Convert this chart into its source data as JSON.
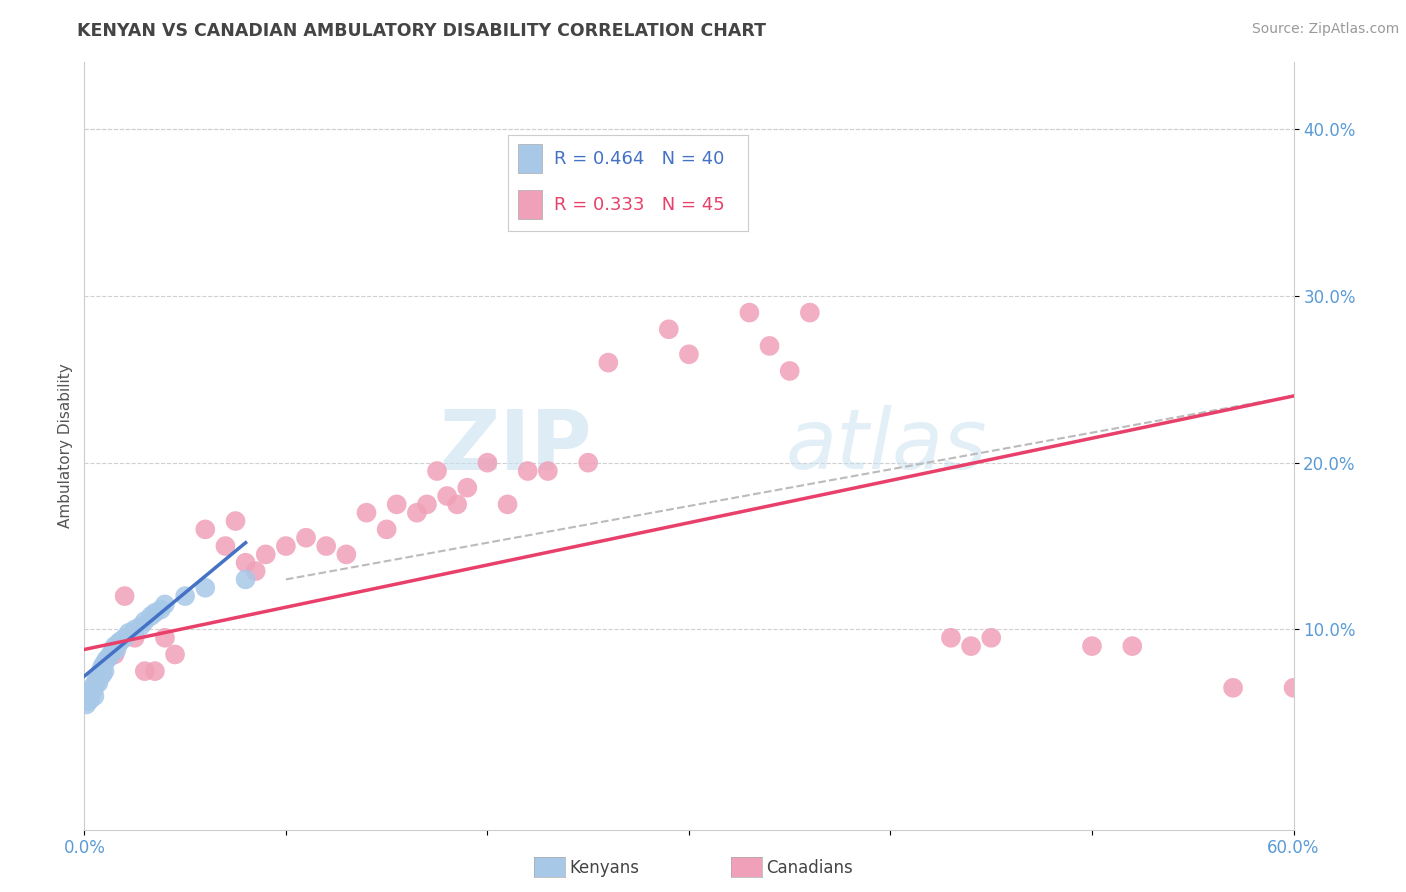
{
  "title": "KENYAN VS CANADIAN AMBULATORY DISABILITY CORRELATION CHART",
  "source": "Source: ZipAtlas.com",
  "ylabel": "Ambulatory Disability",
  "xlim": [
    0.0,
    0.6
  ],
  "ylim": [
    -0.02,
    0.44
  ],
  "xticks": [
    0.0,
    0.1,
    0.2,
    0.3,
    0.4,
    0.5,
    0.6
  ],
  "xticklabels": [
    "0.0%",
    "",
    "",
    "",
    "",
    "",
    "60.0%"
  ],
  "yticks": [
    0.1,
    0.2,
    0.3,
    0.4
  ],
  "yticklabels": [
    "10.0%",
    "20.0%",
    "30.0%",
    "40.0%"
  ],
  "kenyan_color": "#A8C8E8",
  "canadian_color": "#F0A0B8",
  "kenyan_line_color": "#4472C4",
  "canadian_line_color": "#E8406A",
  "dashed_line_color": "#BBBBBB",
  "background_color": "#FFFFFF",
  "grid_color": "#D0D0D0",
  "watermark_zip": "ZIP",
  "watermark_atlas": "atlas",
  "title_color": "#444444",
  "axis_label_color": "#5B9BD5",
  "legend_r1_text": "R = 0.464   N = 40",
  "legend_r2_text": "R = 0.333   N = 45",
  "legend_r1_color": "#4472C4",
  "legend_r2_color": "#E8406A",
  "kenyan_x": [
    0.001,
    0.002,
    0.002,
    0.003,
    0.003,
    0.004,
    0.004,
    0.005,
    0.005,
    0.005,
    0.006,
    0.006,
    0.007,
    0.007,
    0.008,
    0.008,
    0.009,
    0.009,
    0.01,
    0.01,
    0.011,
    0.012,
    0.013,
    0.014,
    0.015,
    0.016,
    0.017,
    0.018,
    0.02,
    0.022,
    0.025,
    0.028,
    0.03,
    0.033,
    0.035,
    0.038,
    0.04,
    0.05,
    0.06,
    0.08
  ],
  "kenyan_y": [
    0.055,
    0.057,
    0.06,
    0.058,
    0.062,
    0.063,
    0.065,
    0.06,
    0.065,
    0.067,
    0.068,
    0.07,
    0.072,
    0.068,
    0.072,
    0.075,
    0.073,
    0.078,
    0.075,
    0.08,
    0.082,
    0.083,
    0.085,
    0.087,
    0.09,
    0.088,
    0.092,
    0.093,
    0.095,
    0.098,
    0.1,
    0.102,
    0.105,
    0.108,
    0.11,
    0.112,
    0.115,
    0.12,
    0.125,
    0.13
  ],
  "canadian_x": [
    0.015,
    0.02,
    0.025,
    0.03,
    0.035,
    0.04,
    0.045,
    0.06,
    0.07,
    0.075,
    0.08,
    0.085,
    0.09,
    0.1,
    0.11,
    0.12,
    0.13,
    0.14,
    0.15,
    0.155,
    0.165,
    0.17,
    0.175,
    0.18,
    0.185,
    0.19,
    0.2,
    0.21,
    0.22,
    0.23,
    0.25,
    0.26,
    0.29,
    0.3,
    0.33,
    0.34,
    0.35,
    0.36,
    0.43,
    0.44,
    0.45,
    0.5,
    0.52,
    0.57,
    0.6
  ],
  "canadian_y": [
    0.085,
    0.12,
    0.095,
    0.075,
    0.075,
    0.095,
    0.085,
    0.16,
    0.15,
    0.165,
    0.14,
    0.135,
    0.145,
    0.15,
    0.155,
    0.15,
    0.145,
    0.17,
    0.16,
    0.175,
    0.17,
    0.175,
    0.195,
    0.18,
    0.175,
    0.185,
    0.2,
    0.175,
    0.195,
    0.195,
    0.2,
    0.26,
    0.28,
    0.265,
    0.29,
    0.27,
    0.255,
    0.29,
    0.095,
    0.09,
    0.095,
    0.09,
    0.09,
    0.065,
    0.065
  ],
  "kenyan_trend_x0": 0.0,
  "kenyan_trend_x1": 0.08,
  "kenyan_trend_y0": 0.072,
  "kenyan_trend_y1": 0.152,
  "canadian_trend_x0": 0.0,
  "canadian_trend_x1": 0.6,
  "canadian_trend_y0": 0.088,
  "canadian_trend_y1": 0.24,
  "dash_trend_x0": 0.1,
  "dash_trend_x1": 0.6,
  "dash_trend_y0": 0.13,
  "dash_trend_y1": 0.24
}
